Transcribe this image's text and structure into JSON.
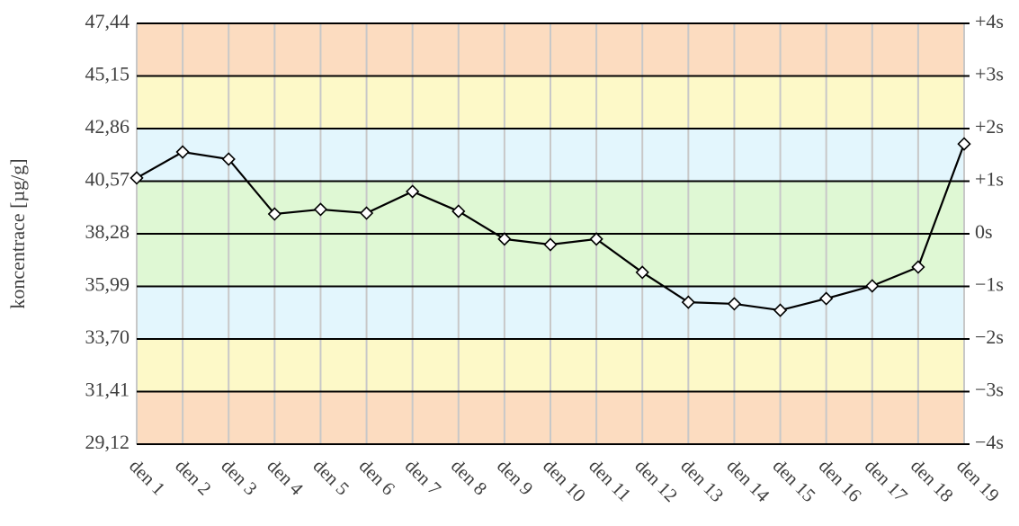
{
  "chart_data": {
    "type": "line",
    "y_axis_label": "koncentrace [µg/g]",
    "categories": [
      "den 1",
      "den 2",
      "den 3",
      "den 4",
      "den 5",
      "den 6",
      "den 7",
      "den 8",
      "den 9",
      "den 10",
      "den 11",
      "den 12",
      "den 13",
      "den 14",
      "den 15",
      "den 16",
      "den 17",
      "den 18",
      "den 19"
    ],
    "series": [
      {
        "name": "koncentrace",
        "color": "#000000",
        "marker": "diamond",
        "values": [
          40.71,
          41.84,
          41.53,
          39.14,
          39.34,
          39.18,
          40.12,
          39.26,
          38.05,
          37.81,
          38.05,
          36.6,
          35.3,
          35.23,
          34.95,
          35.46,
          36.01,
          36.83,
          42.19
        ]
      }
    ],
    "ylim": [
      29.12,
      47.44
    ],
    "yticks": [
      {
        "value": 29.12,
        "label": "29,12"
      },
      {
        "value": 31.41,
        "label": "31,41"
      },
      {
        "value": 33.7,
        "label": "33,70"
      },
      {
        "value": 35.99,
        "label": "35,99"
      },
      {
        "value": 38.28,
        "label": "38,28"
      },
      {
        "value": 40.57,
        "label": "40,57"
      },
      {
        "value": 42.86,
        "label": "42,86"
      },
      {
        "value": 45.15,
        "label": "45,15"
      },
      {
        "value": 47.44,
        "label": "47,44"
      }
    ],
    "y2lim": [
      -4,
      4
    ],
    "y2ticks": [
      {
        "value": -4,
        "label": "−4s"
      },
      {
        "value": -3,
        "label": "−3s"
      },
      {
        "value": -2,
        "label": "−2s"
      },
      {
        "value": -1,
        "label": "−1s"
      },
      {
        "value": 0,
        "label": "0s"
      },
      {
        "value": 1,
        "label": "+1s"
      },
      {
        "value": 2,
        "label": "+2s"
      },
      {
        "value": 3,
        "label": "+3s"
      },
      {
        "value": 4,
        "label": "+4s"
      }
    ],
    "band_colors": [
      "#fcdcc0",
      "#fdf9c8",
      "#e3f6fd",
      "#dff8d4",
      "#dff8d4",
      "#e3f6fd",
      "#fdf9c8",
      "#fcdcc0"
    ],
    "grid": true
  }
}
